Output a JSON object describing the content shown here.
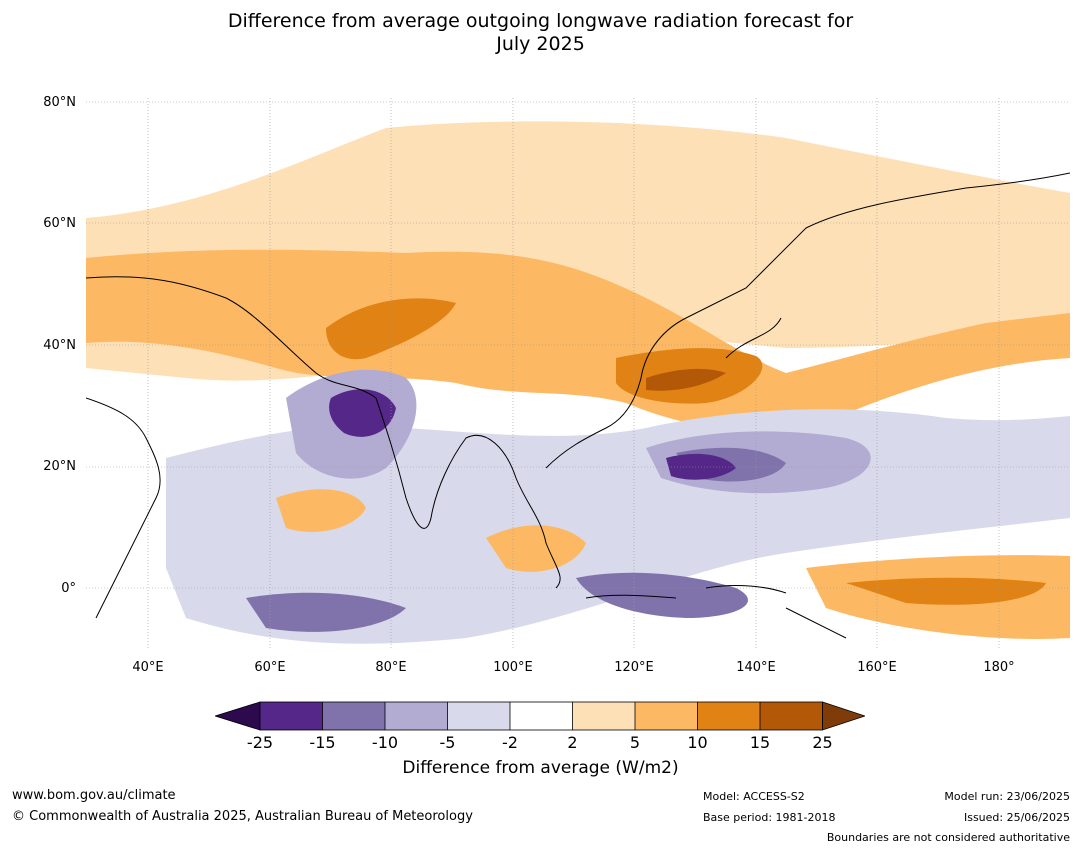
{
  "title_line1": "Difference from average outgoing longwave radiation forecast for",
  "title_line2": "July 2025",
  "lat_labels": [
    "80°N",
    "60°N",
    "40°N",
    "20°N",
    "0°"
  ],
  "lon_labels": [
    "40°E",
    "60°E",
    "80°E",
    "100°E",
    "120°E",
    "140°E",
    "160°E",
    "180°"
  ],
  "colorbar": {
    "tick_labels": [
      "-25",
      "-15",
      "-10",
      "-5",
      "-2",
      "2",
      "5",
      "10",
      "15",
      "25"
    ],
    "colors": [
      "#2d0a4e",
      "#542788",
      "#8073ac",
      "#b2abd2",
      "#d8daeb",
      "#ffffff",
      "#fee0b6",
      "#fdb863",
      "#e08214",
      "#b35806",
      "#7f3b08"
    ],
    "title": "Difference from average (W/m2)"
  },
  "footer": {
    "website": "www.bom.gov.au/climate",
    "copyright": "© Commonwealth of Australia 2025, Australian Bureau of Meteorology",
    "model": "Model: ACCESS-S2",
    "base_period": "Base period: 1981-2018",
    "model_run": "Model run: 23/06/2025",
    "issued": "Issued: 25/06/2025",
    "disclaimer": "Boundaries are not considered authoritative"
  }
}
